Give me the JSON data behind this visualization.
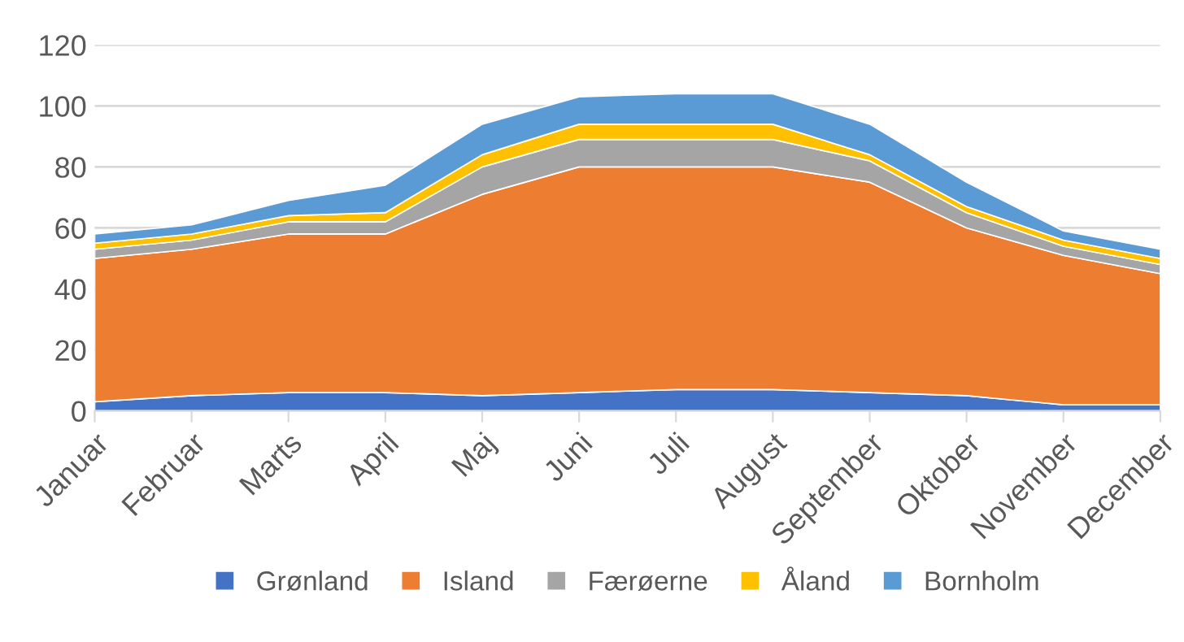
{
  "chart_data": {
    "type": "area",
    "stacked": true,
    "categories": [
      "Januar",
      "Februar",
      "Marts",
      "April",
      "Maj",
      "Juni",
      "Juli",
      "August",
      "September",
      "Oktober",
      "November",
      "December"
    ],
    "series": [
      {
        "name": "Grønland",
        "color": "#4472c4",
        "values": [
          3,
          5,
          6,
          6,
          5,
          6,
          7,
          7,
          6,
          5,
          2,
          2
        ]
      },
      {
        "name": "Island",
        "color": "#ed7d31",
        "values": [
          47,
          48,
          52,
          52,
          66,
          74,
          73,
          73,
          69,
          55,
          49,
          43
        ]
      },
      {
        "name": "Færøerne",
        "color": "#a5a5a5",
        "values": [
          3,
          3,
          4,
          4,
          9,
          9,
          9,
          9,
          7,
          5,
          3,
          3
        ]
      },
      {
        "name": "Åland",
        "color": "#ffc000",
        "values": [
          2,
          2,
          2,
          3,
          4,
          5,
          5,
          5,
          2,
          2,
          2,
          2
        ]
      },
      {
        "name": "Bornholm",
        "color": "#5b9bd5",
        "values": [
          3,
          3,
          5,
          9,
          10,
          9,
          10,
          10,
          10,
          8,
          3,
          3
        ]
      }
    ],
    "ylim": [
      0,
      120
    ],
    "yticks": [
      0,
      20,
      40,
      60,
      80,
      100,
      120
    ],
    "grid": "y",
    "legend": "bottom"
  }
}
